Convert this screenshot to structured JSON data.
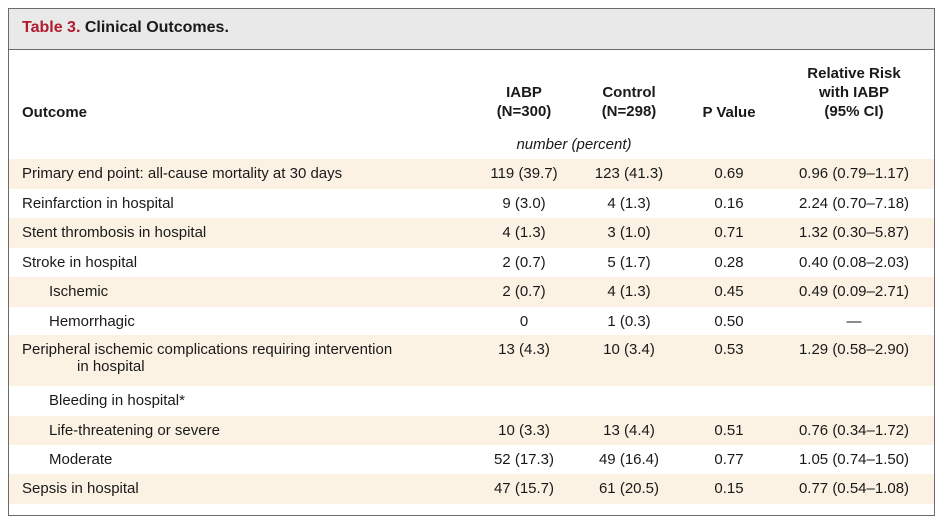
{
  "table": {
    "number": "Table 3.",
    "title": "Clinical Outcomes.",
    "headers": {
      "outcome": "Outcome",
      "iabp": [
        "IABP",
        "(N=300)"
      ],
      "control": [
        "Control",
        "(N=298)"
      ],
      "pvalue": "P Value",
      "rr": [
        "Relative Risk",
        "with IABP",
        "(95% CI)"
      ]
    },
    "units": "number (percent)",
    "rows": [
      {
        "label": "Primary end point: all-cause mortality at 30 days",
        "label2": "",
        "iabp": "119 (39.7)",
        "control": "123 (41.3)",
        "p": "0.69",
        "rr": "0.96 (0.79–1.17)"
      },
      {
        "label": "Reinfarction in hospital",
        "label2": "",
        "iabp": "9 (3.0)",
        "control": "4 (1.3)",
        "p": "0.16",
        "rr": "2.24 (0.70–7.18)"
      },
      {
        "label": "Stent thrombosis in hospital",
        "label2": "",
        "iabp": "4 (1.3)",
        "control": "3 (1.0)",
        "p": "0.71",
        "rr": "1.32 (0.30–5.87)"
      },
      {
        "label": "Stroke in hospital",
        "label2": "",
        "iabp": "2 (0.7)",
        "control": "5 (1.7)",
        "p": "0.28",
        "rr": "0.40 (0.08–2.03)"
      },
      {
        "label": "Ischemic",
        "label2": "",
        "iabp": "2 (0.7)",
        "control": "4 (1.3)",
        "p": "0.45",
        "rr": "0.49 (0.09–2.71)"
      },
      {
        "label": "Hemorrhagic",
        "label2": "",
        "iabp": "0",
        "control": "1 (0.3)",
        "p": "0.50",
        "rr": "—"
      },
      {
        "label": "Peripheral ischemic complications requiring intervention",
        "label2": "in hospital",
        "iabp": "13 (4.3)",
        "control": "10 (3.4)",
        "p": "0.53",
        "rr": "1.29 (0.58–2.90)"
      },
      {
        "label": "Bleeding in hospital*",
        "label2": "",
        "iabp": "",
        "control": "",
        "p": "",
        "rr": ""
      },
      {
        "label": "Life-threatening or severe",
        "label2": "",
        "iabp": "10 (3.3)",
        "control": "13 (4.4)",
        "p": "0.51",
        "rr": "0.76 (0.34–1.72)"
      },
      {
        "label": "Moderate",
        "label2": "",
        "iabp": "52 (17.3)",
        "control": "49 (16.4)",
        "p": "0.77",
        "rr": "1.05 (0.74–1.50)"
      },
      {
        "label": "Sepsis in hospital",
        "label2": "",
        "iabp": "47 (15.7)",
        "control": "61 (20.5)",
        "p": "0.15",
        "rr": "0.77 (0.54–1.08)"
      }
    ]
  }
}
